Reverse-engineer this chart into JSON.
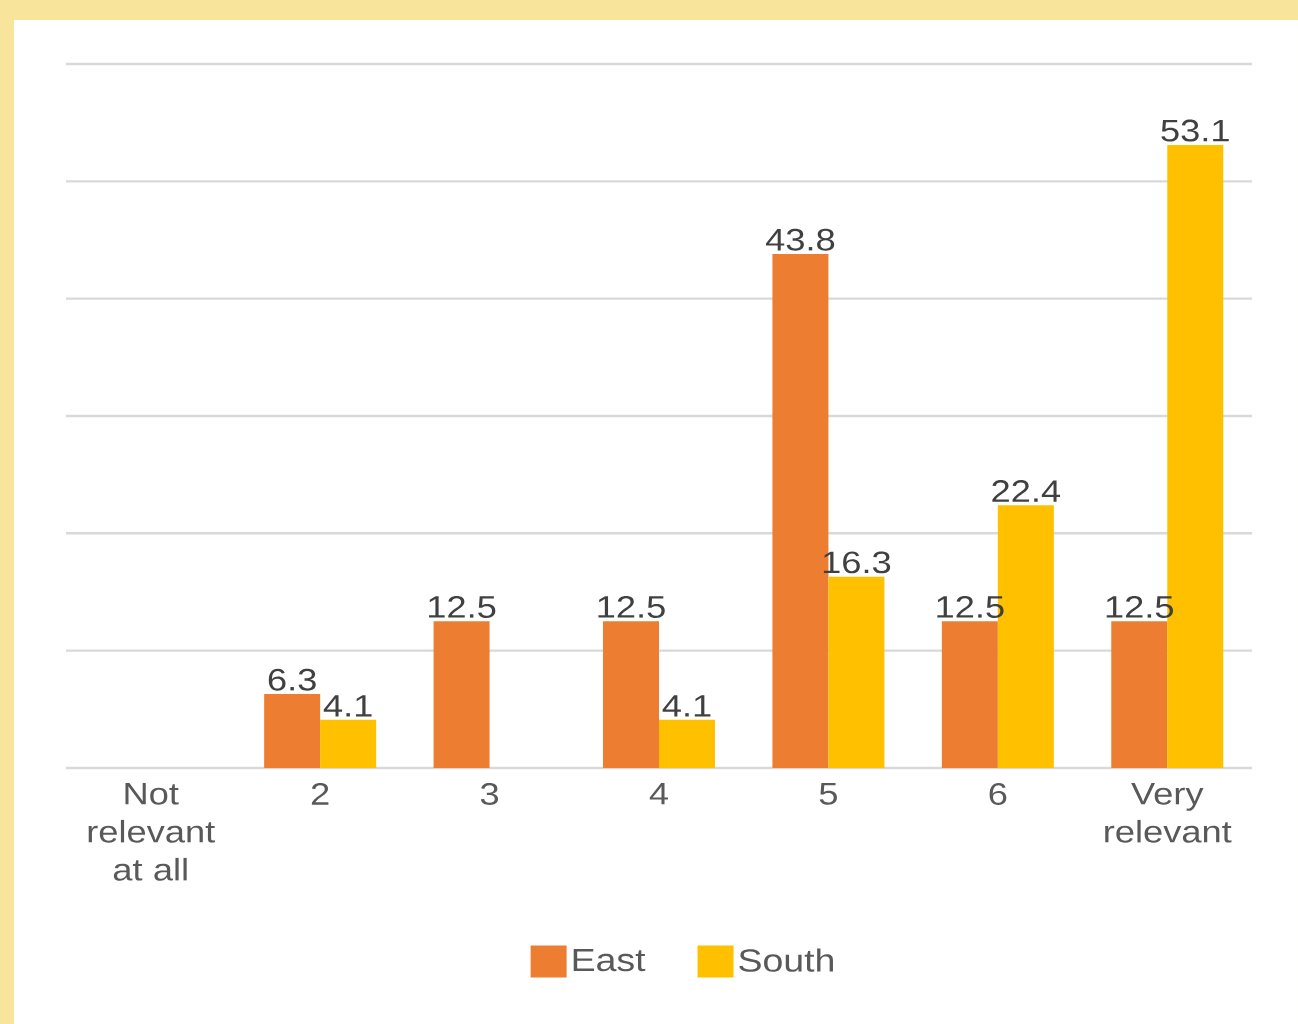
{
  "chart_data": {
    "type": "bar",
    "categories": [
      "Not relevant at all",
      "2",
      "3",
      "4",
      "5",
      "6",
      "Very relevant"
    ],
    "series": [
      {
        "name": "East",
        "color": "#ed7d31",
        "values": [
          null,
          6.3,
          12.5,
          12.5,
          43.8,
          12.5,
          12.5
        ]
      },
      {
        "name": "South",
        "color": "#ffc000",
        "values": [
          null,
          4.1,
          null,
          4.1,
          16.3,
          22.4,
          53.1
        ]
      }
    ],
    "ylim": [
      0,
      60
    ],
    "yticks": [
      0,
      10,
      20,
      30,
      40,
      50,
      60
    ],
    "tick_labels": "x",
    "grid": "y",
    "legend": "bottom",
    "data_labels": true
  }
}
